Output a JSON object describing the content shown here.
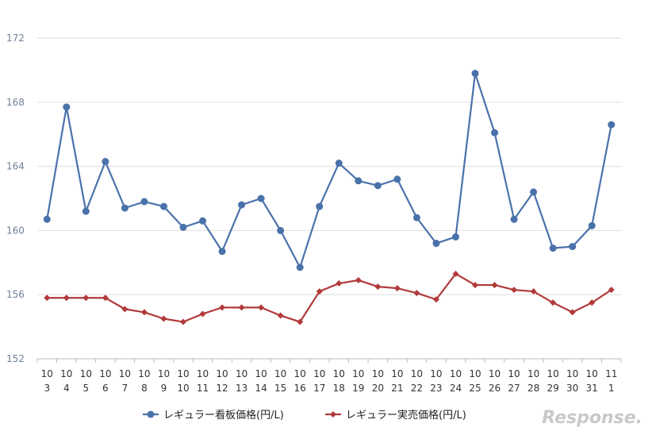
{
  "chart_data": {
    "type": "line",
    "title": "",
    "xlabel": "",
    "ylabel": "",
    "ylim": [
      152,
      172
    ],
    "yticks": [
      152,
      156,
      160,
      164,
      168,
      172
    ],
    "categories": [
      [
        "10",
        "3"
      ],
      [
        "10",
        "4"
      ],
      [
        "10",
        "5"
      ],
      [
        "10",
        "6"
      ],
      [
        "10",
        "7"
      ],
      [
        "10",
        "8"
      ],
      [
        "10",
        "9"
      ],
      [
        "10",
        "10"
      ],
      [
        "10",
        "11"
      ],
      [
        "10",
        "12"
      ],
      [
        "10",
        "13"
      ],
      [
        "10",
        "14"
      ],
      [
        "10",
        "15"
      ],
      [
        "10",
        "16"
      ],
      [
        "10",
        "17"
      ],
      [
        "10",
        "18"
      ],
      [
        "10",
        "19"
      ],
      [
        "10",
        "20"
      ],
      [
        "10",
        "21"
      ],
      [
        "10",
        "22"
      ],
      [
        "10",
        "23"
      ],
      [
        "10",
        "24"
      ],
      [
        "10",
        "25"
      ],
      [
        "10",
        "26"
      ],
      [
        "10",
        "27"
      ],
      [
        "10",
        "28"
      ],
      [
        "10",
        "29"
      ],
      [
        "10",
        "30"
      ],
      [
        "10",
        "31"
      ],
      [
        "11",
        "1"
      ]
    ],
    "series": [
      {
        "name": "レギュラー看板価格(円/L)",
        "color": "#4a72aa",
        "marker": "circle",
        "values": [
          160.7,
          167.7,
          161.2,
          164.3,
          161.4,
          161.8,
          161.5,
          160.2,
          160.6,
          158.7,
          161.6,
          162.0,
          160.0,
          157.7,
          161.5,
          164.2,
          163.1,
          162.8,
          163.2,
          160.8,
          159.2,
          159.6,
          169.8,
          166.1,
          160.7,
          162.4,
          158.9,
          159.0,
          160.3,
          166.6
        ]
      },
      {
        "name": "レギュラー実売価格(円/L)",
        "color": "#b23a3a",
        "marker": "diamond",
        "values": [
          155.8,
          155.8,
          155.8,
          155.8,
          155.1,
          154.9,
          154.5,
          154.3,
          154.8,
          155.2,
          155.2,
          155.2,
          154.7,
          154.3,
          156.2,
          156.7,
          156.9,
          156.5,
          156.4,
          156.1,
          155.7,
          157.3,
          156.6,
          156.6,
          156.3,
          156.2,
          155.5,
          154.9,
          155.5,
          156.3
        ]
      }
    ],
    "grid": true,
    "legend": "bottom"
  },
  "watermark": "Response."
}
